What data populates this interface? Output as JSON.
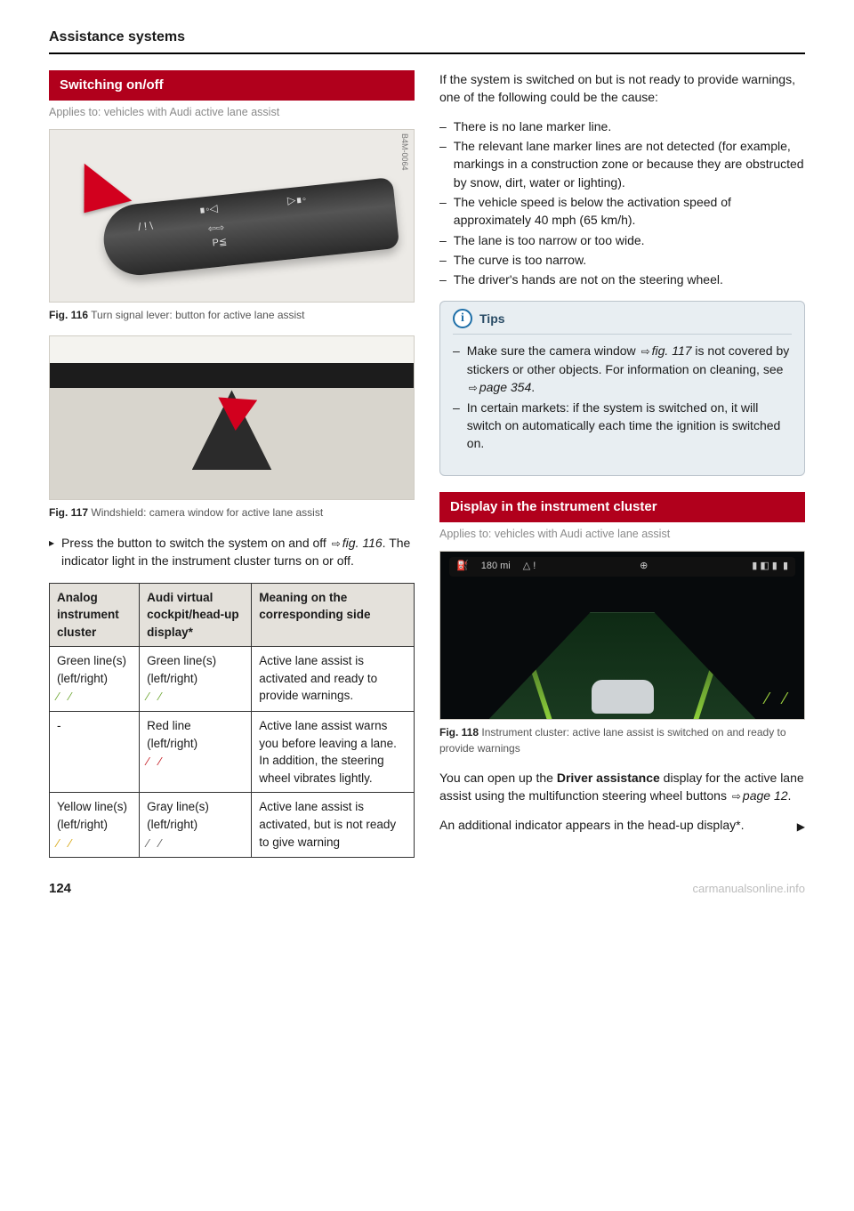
{
  "header": "Assistance systems",
  "page_number": "124",
  "watermark": "carmanualsonline.info",
  "left": {
    "banner": "Switching on/off",
    "applies": "Applies to: vehicles with Audi active lane assist",
    "fig116": {
      "code": "B4M-0064",
      "caption_num": "Fig. 116",
      "caption_text": "Turn signal lever: button for active lane assist"
    },
    "fig117": {
      "code": "B4M-0090",
      "caption_num": "Fig. 117",
      "caption_text": "Windshield: camera window for active lane assist"
    },
    "instruction_pre": "Press the button to switch the system on and off ",
    "instruction_fig": "fig. 116",
    "instruction_post": ". The indicator light in the instrument cluster turns on or off.",
    "table": {
      "headers": [
        "Analog instrument cluster",
        "Audi virtual cockpit/head-up display*",
        "Meaning on the corresponding side"
      ],
      "rows": [
        {
          "c1_text": "Green line(s) (left/right)",
          "c1_color": "lm-green",
          "c2_text": "Green line(s) (left/right)",
          "c2_color": "lm-green",
          "c3": "Active lane assist is activated and ready to provide warnings."
        },
        {
          "c1_text": "-",
          "c1_color": "",
          "c2_text": "Red line (left/right)",
          "c2_color": "lm-red",
          "c3": "Active lane assist warns you before leaving a lane. In addition, the steering wheel vibrates lightly."
        },
        {
          "c1_text": "Yellow line(s) (left/right)",
          "c1_color": "lm-yellow",
          "c2_text": "Gray line(s) (left/right)",
          "c2_color": "lm-gray",
          "c3": "Active lane assist is activated, but is not ready to give warning"
        }
      ]
    }
  },
  "right": {
    "intro": "If the system is switched on but is not ready to provide warnings, one of the following could be the cause:",
    "causes": [
      "There is no lane marker line.",
      "The relevant lane marker lines are not detected (for example, markings in a construction zone or because they are obstructed by snow, dirt, water or lighting).",
      "The vehicle speed is below the activation speed of approximately 40 mph (65 km/h).",
      "The lane is too narrow or too wide.",
      "The curve is too narrow.",
      "The driver's hands are not on the steering wheel."
    ],
    "tips_title": "Tips",
    "tip1_a": "Make sure the camera window ",
    "tip1_fig": "fig. 117",
    "tip1_b": " is not covered by stickers or other objects. For information on cleaning, see ",
    "tip1_page": "page 354",
    "tip1_c": ".",
    "tip2": "In certain markets: if the system is switched on, it will switch on automatically each time the ignition is switched on.",
    "banner2": "Display in the instrument cluster",
    "applies2": "Applies to: vehicles with Audi active lane assist",
    "fig118": {
      "code": "B4M-0235",
      "top_readout": "180 mi",
      "caption_num": "Fig. 118",
      "caption_text": "Instrument cluster: active lane assist is switched on and ready to provide warnings"
    },
    "p1_a": "You can open up the ",
    "p1_bold": "Driver assistance",
    "p1_b": " display for the active lane assist using the multifunction steering wheel buttons ",
    "p1_page": "page 12",
    "p1_c": ".",
    "p2": "An additional indicator appears in the head-up display*."
  }
}
